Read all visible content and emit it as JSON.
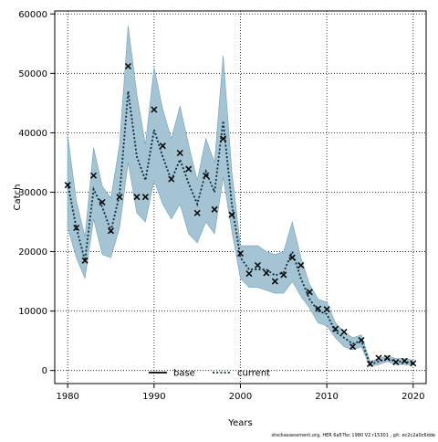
{
  "chart_data": {
    "type": "line",
    "xlabel": "Years",
    "ylabel": "Catch",
    "xlim": [
      1978.5,
      2021.5
    ],
    "ylim": [
      -2200,
      60500
    ],
    "xticks": [
      1980,
      1990,
      2000,
      2010,
      2020
    ],
    "yticks": [
      0,
      10000,
      20000,
      30000,
      40000,
      50000,
      60000
    ],
    "grid": true,
    "legend_position": "bottom-center",
    "colors": {
      "band_fill": "#a4c4d4",
      "band_stroke": "#6f9fb8",
      "current_line": "#0b2b3e",
      "base_line": "#000000",
      "observed_marker": "#000000"
    },
    "series": [
      {
        "name": "base",
        "style": "solid",
        "color": "#000000",
        "x": [],
        "values": []
      },
      {
        "name": "current",
        "style": "dotted",
        "color": "#0b2b3e",
        "x": [
          1980,
          1981,
          1982,
          1983,
          1984,
          1985,
          1986,
          1987,
          1988,
          1989,
          1990,
          1991,
          1992,
          1993,
          1994,
          1995,
          1996,
          1997,
          1998,
          1999,
          2000,
          2001,
          2002,
          2003,
          2004,
          2005,
          2006,
          2007,
          2008,
          2009,
          2010,
          2011,
          2012,
          2013,
          2014,
          2015,
          2016,
          2017,
          2018,
          2019,
          2020
        ],
        "values": [
          31500,
          24000,
          18500,
          30500,
          27500,
          23500,
          29500,
          47000,
          36000,
          32000,
          40500,
          36000,
          32000,
          35500,
          31500,
          28000,
          33500,
          30000,
          42000,
          28000,
          19000,
          17000,
          17000,
          17000,
          16000,
          16500,
          20000,
          15500,
          12000,
          10000,
          9500,
          6500,
          5500,
          4500,
          5000,
          1000,
          1500,
          2000,
          1500,
          1500,
          1200
        ]
      }
    ],
    "band": {
      "x": [
        1980,
        1981,
        1982,
        1983,
        1984,
        1985,
        1986,
        1987,
        1988,
        1989,
        1990,
        1991,
        1992,
        1993,
        1994,
        1995,
        1996,
        1997,
        1998,
        1999,
        2000,
        2001,
        2002,
        2003,
        2004,
        2005,
        2006,
        2007,
        2008,
        2009,
        2010,
        2011,
        2012,
        2013,
        2014,
        2015,
        2016,
        2017,
        2018,
        2019,
        2020
      ],
      "lower": [
        24000,
        19000,
        15500,
        25500,
        19500,
        19000,
        24000,
        35000,
        26500,
        25000,
        32000,
        28000,
        25500,
        28000,
        23000,
        21500,
        25000,
        23000,
        32500,
        23500,
        15500,
        14000,
        14000,
        13500,
        13000,
        13000,
        15000,
        12500,
        10500,
        8000,
        7500,
        5500,
        4000,
        3500,
        4000,
        700,
        1000,
        1500,
        1000,
        1000,
        900
      ],
      "upper": [
        39500,
        28500,
        22500,
        37500,
        31000,
        29000,
        38000,
        58000,
        46500,
        38000,
        51000,
        44000,
        39000,
        44500,
        38000,
        32000,
        39000,
        35000,
        53000,
        33500,
        21000,
        21000,
        21000,
        20000,
        19500,
        20000,
        25000,
        19000,
        14500,
        12000,
        11500,
        8000,
        6500,
        5500,
        6000,
        1500,
        2000,
        2500,
        2000,
        2000,
        1700
      ]
    },
    "observed": {
      "marker": "x",
      "x": [
        1980,
        1981,
        1982,
        1983,
        1984,
        1985,
        1986,
        1987,
        1988,
        1989,
        1990,
        1991,
        1992,
        1993,
        1994,
        1995,
        1996,
        1997,
        1998,
        1999,
        2000,
        2001,
        2002,
        2003,
        2004,
        2005,
        2006,
        2007,
        2008,
        2009,
        2010,
        2011,
        2012,
        2013,
        2014,
        2015,
        2016,
        2017,
        2018,
        2019,
        2020
      ],
      "values": [
        31200,
        24000,
        18500,
        32800,
        28300,
        23500,
        29200,
        51200,
        29200,
        29200,
        43900,
        37800,
        32200,
        36600,
        33900,
        26500,
        32800,
        27100,
        39000,
        26200,
        19700,
        16300,
        17700,
        16400,
        15000,
        16100,
        19000,
        17700,
        13200,
        10400,
        10300,
        7000,
        6500,
        4000,
        5100,
        1100,
        2100,
        2100,
        1400,
        1600,
        1200
      ]
    }
  },
  "legend": {
    "items": [
      {
        "label": "base",
        "style": "solid",
        "color": "#000000"
      },
      {
        "label": "current",
        "style": "dotted",
        "color": "#0b2b3e"
      }
    ]
  },
  "footer": {
    "text": "stockassessment.org, HER 6a57bc 1980 V2 r15301 , git: ec2c2a0c6dde"
  }
}
